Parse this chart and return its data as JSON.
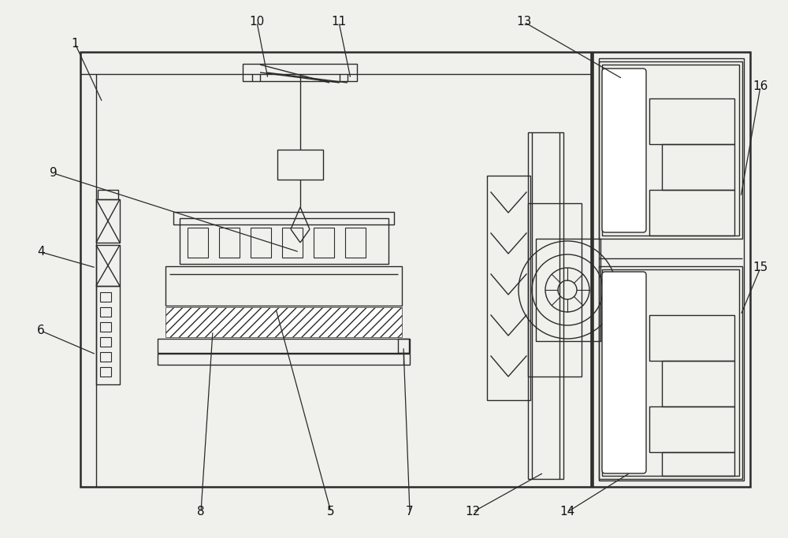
{
  "bg_color": "#f0f0ec",
  "line_color": "#2a2a2a",
  "fig_width": 10.0,
  "fig_height": 6.83
}
